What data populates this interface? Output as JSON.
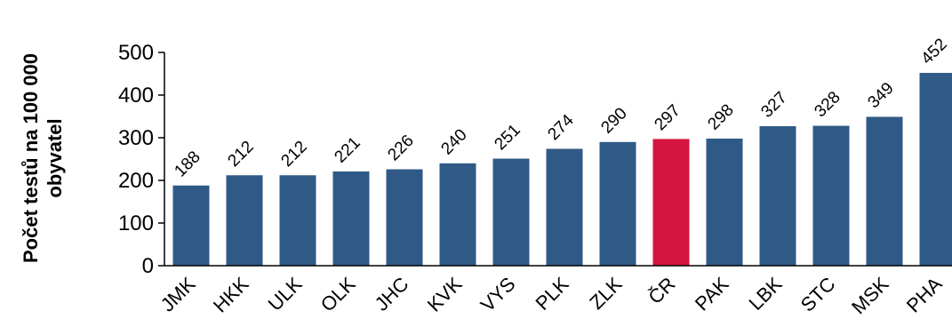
{
  "chart_data": {
    "type": "bar",
    "categories": [
      "JMK",
      "HKK",
      "ULK",
      "OLK",
      "JHC",
      "KVK",
      "VYS",
      "PLK",
      "ZLK",
      "ČR",
      "PAK",
      "LBK",
      "STC",
      "MSK",
      "PHA"
    ],
    "values": [
      188,
      212,
      212,
      221,
      226,
      240,
      251,
      274,
      290,
      297,
      298,
      327,
      328,
      349,
      452
    ],
    "data_labels": [
      "188",
      "212",
      "212",
      "221",
      "226",
      "240",
      "251",
      "274",
      "290",
      "297",
      "298",
      "327",
      "328",
      "349",
      "452"
    ],
    "highlight_category": "ČR",
    "ylabel_lines": [
      "Počet testů na 100 000",
      "obyvatel"
    ],
    "ylim": [
      0,
      500
    ],
    "yticks": [
      "0",
      "100",
      "200",
      "300",
      "400",
      "500"
    ],
    "grid": false,
    "legend": "none",
    "colors": {
      "bar": "#2f5a87",
      "highlight": "#d3143f",
      "axis": "#000000"
    }
  }
}
